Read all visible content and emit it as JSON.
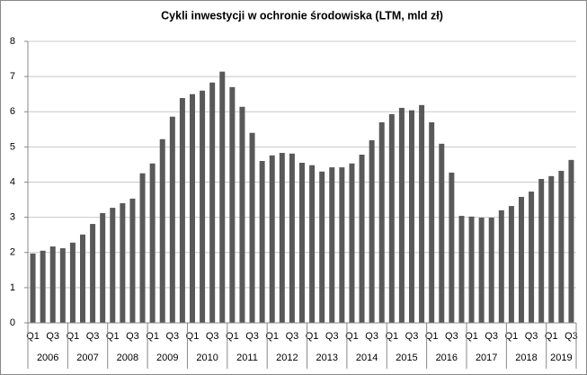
{
  "chart_data": {
    "type": "bar",
    "title": "Cykli inwestycji w ochronie środowiska (LTM, mld zł)",
    "categories": [
      "Q1",
      null,
      "Q3",
      null,
      "Q1",
      null,
      "Q3",
      null,
      "Q1",
      null,
      "Q3",
      null,
      "Q1",
      null,
      "Q3",
      null,
      "Q1",
      null,
      "Q3",
      null,
      "Q1",
      null,
      "Q3",
      null,
      "Q1",
      null,
      "Q3",
      null,
      "Q1",
      null,
      "Q3",
      null,
      "Q1",
      null,
      "Q3",
      null,
      "Q1",
      null,
      "Q3",
      null,
      "Q1",
      null,
      "Q3",
      null,
      "Q1",
      null,
      "Q3",
      null,
      "Q1",
      null,
      "Q3",
      null,
      "Q1",
      null,
      "Q3"
    ],
    "year_labels": [
      "2006",
      "2007",
      "2008",
      "2009",
      "2010",
      "2011",
      "2012",
      "2013",
      "2014",
      "2015",
      "2016",
      "2017",
      "2018",
      "2019"
    ],
    "values": [
      1.97,
      2.05,
      2.17,
      2.12,
      2.28,
      2.51,
      2.81,
      3.12,
      3.27,
      3.4,
      3.53,
      4.25,
      4.53,
      5.22,
      5.86,
      6.39,
      6.5,
      6.6,
      6.83,
      7.14,
      6.7,
      6.14,
      5.4,
      4.6,
      4.76,
      4.83,
      4.81,
      4.55,
      4.48,
      4.3,
      4.42,
      4.42,
      4.53,
      4.78,
      5.19,
      5.7,
      5.93,
      6.11,
      6.04,
      6.19,
      5.7,
      5.09,
      4.27,
      3.04,
      3.02,
      2.99,
      2.99,
      3.2,
      3.32,
      3.58,
      3.73,
      4.09,
      4.17,
      4.32,
      4.63
    ],
    "color": "#595959",
    "ylim": [
      0,
      8
    ],
    "yticks": [
      0,
      1,
      2,
      3,
      4,
      5,
      6,
      7,
      8
    ],
    "grid": true
  }
}
